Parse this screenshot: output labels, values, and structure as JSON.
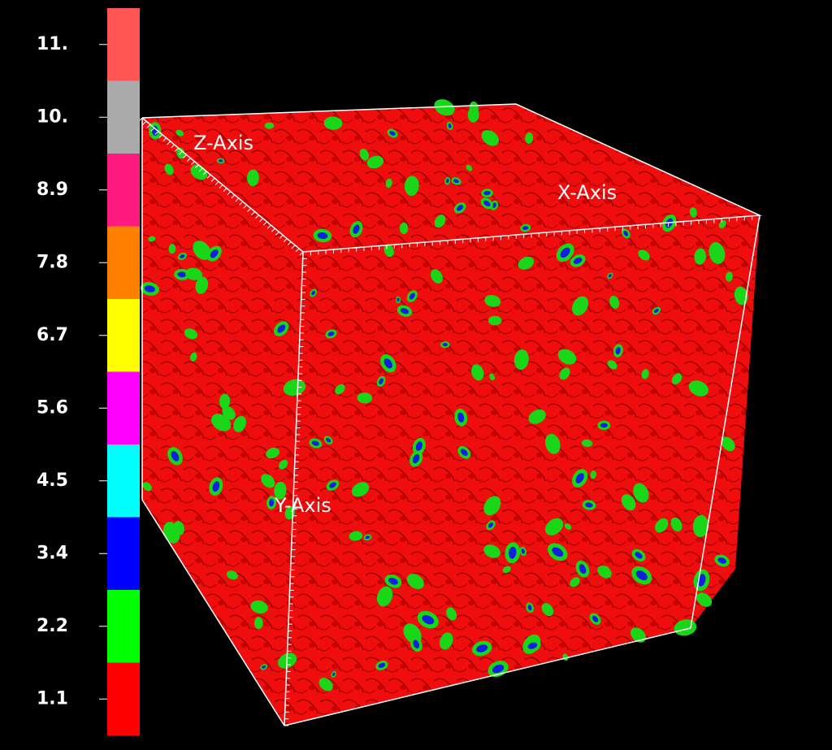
{
  "legend": {
    "entries": [
      {
        "label": "11.",
        "color": "#ff5555"
      },
      {
        "label": "10.",
        "color": "#aaaaaa"
      },
      {
        "label": "8.9",
        "color": "#ff1a80"
      },
      {
        "label": "7.8",
        "color": "#ff8000"
      },
      {
        "label": "6.7",
        "color": "#ffff00"
      },
      {
        "label": "5.6",
        "color": "#ff00ff"
      },
      {
        "label": "4.5",
        "color": "#00ffff"
      },
      {
        "label": "3.4",
        "color": "#0000ff"
      },
      {
        "label": "2.2",
        "color": "#00ff00"
      },
      {
        "label": "1.1",
        "color": "#ff0000"
      }
    ]
  },
  "axes": {
    "z": "Z-Axis",
    "x": "X-Axis",
    "y": "Y-Axis"
  }
}
